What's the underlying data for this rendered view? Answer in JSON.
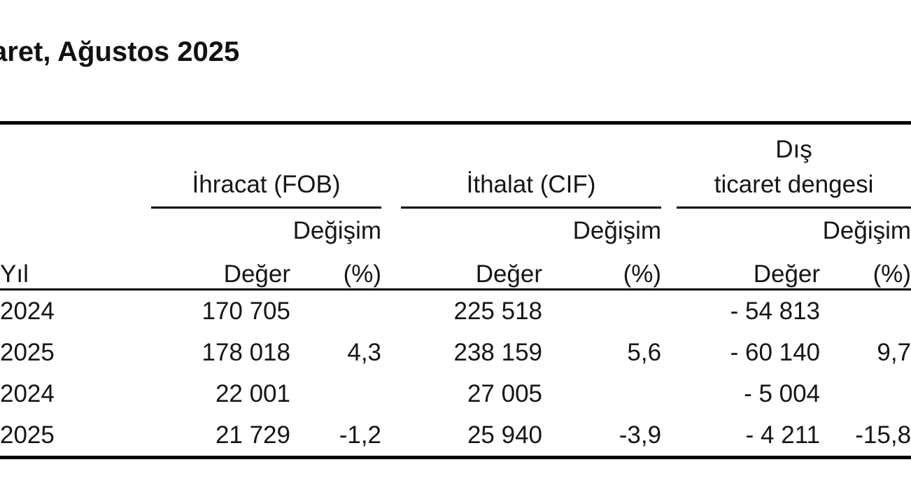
{
  "page": {
    "title": "aret, Ağustos 2025"
  },
  "table": {
    "groups": [
      {
        "name": "ihracat-fob",
        "label_lines": [
          "İhracat (FOB)"
        ]
      },
      {
        "name": "ithalat-cif",
        "label_lines": [
          "İthalat (CIF)"
        ]
      },
      {
        "name": "dis-ticaret-dengesi",
        "label_lines": [
          "Dış",
          "ticaret dengesi"
        ]
      }
    ],
    "subheader": {
      "change_label": "Değişim",
      "year_label": "Yıl",
      "value_label": "Değer",
      "percent_label": "(%)"
    },
    "rows": [
      {
        "year": "2024",
        "cells": [
          "170 705",
          "",
          "225 518",
          "",
          "- 54 813",
          ""
        ]
      },
      {
        "year": "2025",
        "cells": [
          "178 018",
          "4,3",
          "238 159",
          "5,6",
          "- 60 140",
          "9,7"
        ]
      },
      {
        "year": "2024",
        "cells": [
          "22 001",
          "",
          "27 005",
          "",
          "- 5 004",
          ""
        ]
      },
      {
        "year": "2025",
        "cells": [
          "21 729",
          "-1,2",
          "25 940",
          "-3,9",
          "- 4 211",
          "-15,8"
        ]
      }
    ]
  }
}
